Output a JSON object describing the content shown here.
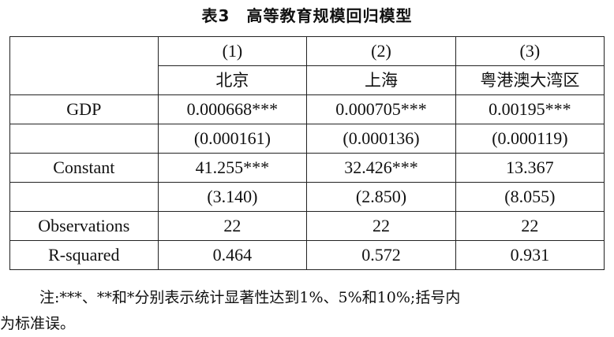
{
  "title": "表3　高等教育规模回归模型",
  "table": {
    "col_numbers": [
      "(1)",
      "(2)",
      "(3)"
    ],
    "col_regions": [
      "北京",
      "上海",
      "粤港澳大湾区"
    ],
    "rows": [
      {
        "label": "GDP",
        "values": [
          "0.000668***",
          "0.000705***",
          "0.00195***"
        ]
      },
      {
        "label": "",
        "values": [
          "(0.000161)",
          "(0.000136)",
          "(0.000119)"
        ]
      },
      {
        "label": "Constant",
        "values": [
          "41.255***",
          "32.426***",
          "13.367"
        ]
      },
      {
        "label": "",
        "values": [
          "(3.140)",
          "(2.850)",
          "(8.055)"
        ]
      },
      {
        "label": "Observations",
        "values": [
          "22",
          "22",
          "22"
        ]
      },
      {
        "label": "R-squared",
        "values": [
          "0.464",
          "0.572",
          "0.931"
        ]
      }
    ]
  },
  "note": {
    "line1": "注:***、**和*分别表示统计显著性达到1%、5%和10%;括号内",
    "line2": "为标准误。"
  }
}
